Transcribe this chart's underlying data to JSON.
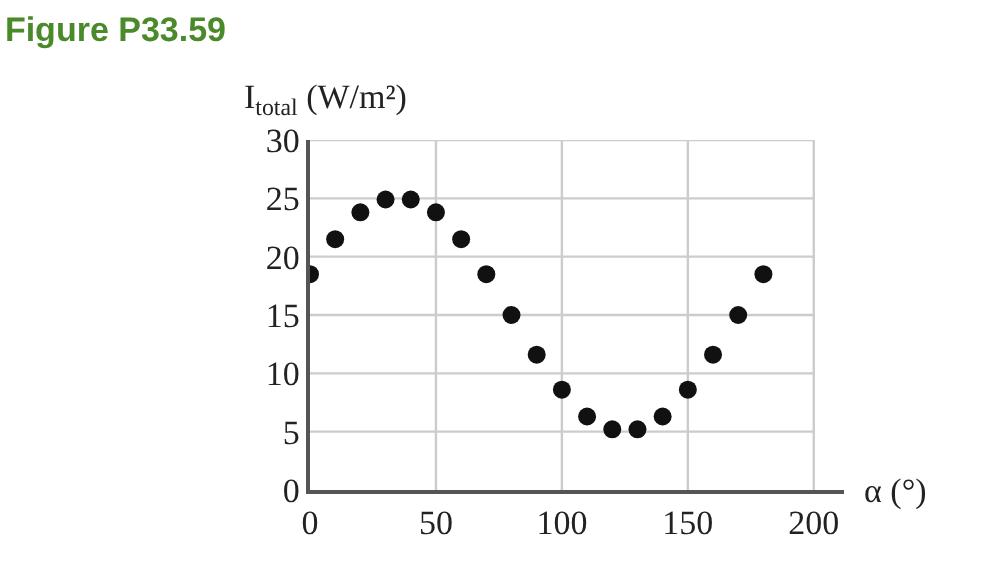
{
  "chart_data": {
    "type": "scatter",
    "title": "Figure P33.59",
    "ylabel": "I$_{total}$ (W/m²)",
    "xlabel": "α (°)",
    "x": [
      0,
      10,
      20,
      30,
      40,
      50,
      60,
      70,
      80,
      90,
      100,
      110,
      120,
      130,
      140,
      150,
      160,
      170,
      180
    ],
    "series": [
      {
        "color": "#111111",
        "values": [
          18.5,
          21.5,
          23.8,
          24.9,
          24.9,
          23.8,
          21.5,
          18.5,
          15,
          11.6,
          8.6,
          6.3,
          5.2,
          5.2,
          6.3,
          8.6,
          11.6,
          15,
          18.5
        ]
      }
    ],
    "xlim": [
      0,
      212
    ],
    "xticks": [
      0,
      50,
      100,
      150,
      200
    ],
    "ylim": [
      0,
      30
    ],
    "yticks": [
      0,
      5,
      10,
      15,
      20,
      25,
      30
    ],
    "grid": true,
    "marker": "circle",
    "legend": false
  }
}
